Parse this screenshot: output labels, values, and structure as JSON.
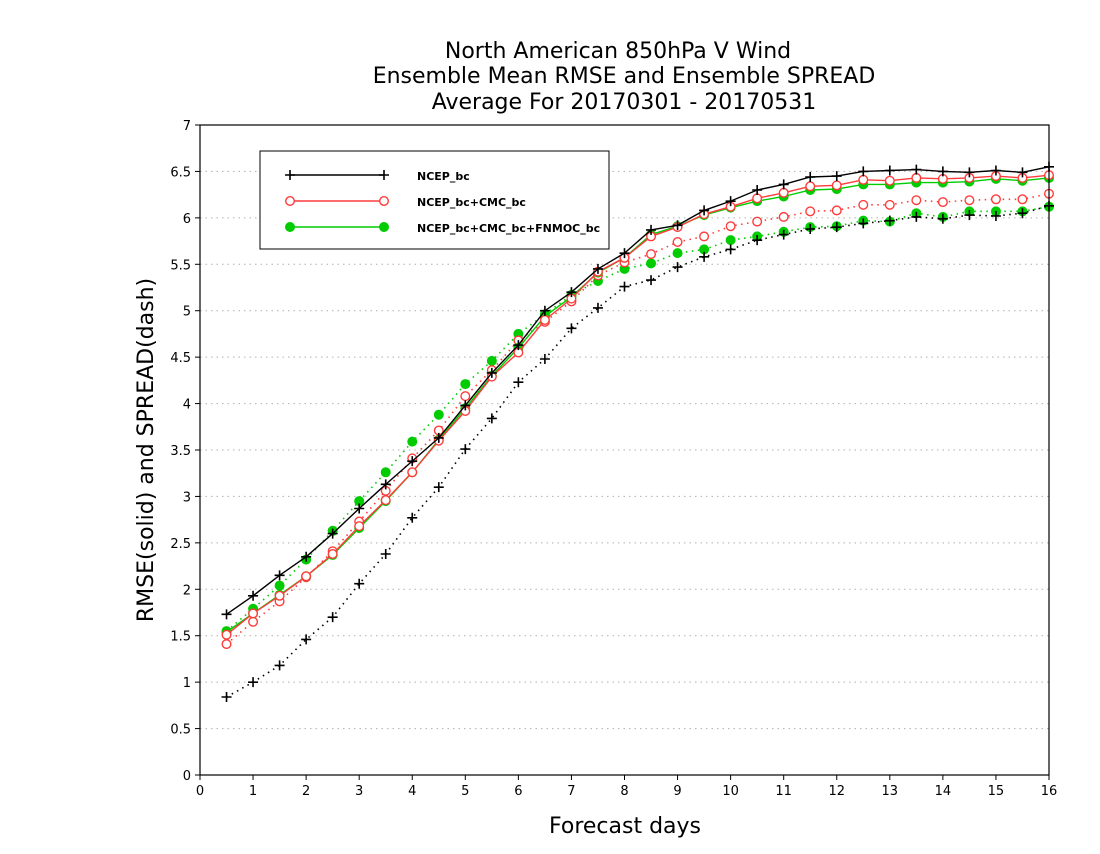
{
  "chart_data": {
    "type": "line",
    "title": [
      "North American 850hPa V Wind",
      "Ensemble Mean RMSE and Ensemble SPREAD",
      "Average For 20170301 - 20170531"
    ],
    "xlabel": "Forecast days",
    "ylabel": "RMSE(solid)  and  SPREAD(dash)",
    "xlim": [
      0,
      16
    ],
    "ylim": [
      0,
      7
    ],
    "xticks": [
      0,
      1,
      2,
      3,
      4,
      5,
      6,
      7,
      8,
      9,
      10,
      11,
      12,
      13,
      14,
      15,
      16
    ],
    "yticks": [
      0,
      0.5,
      1,
      1.5,
      2,
      2.5,
      3,
      3.5,
      4,
      4.5,
      5,
      5.5,
      6,
      6.5,
      7
    ],
    "ytick_labels": [
      "0",
      "0.5",
      "1",
      "1.5",
      "2",
      "2.5",
      "3",
      "3.5",
      "4",
      "4.5",
      "5",
      "5.5",
      "6",
      "6.5",
      "7"
    ],
    "grid": "horizontal dotted",
    "legend_position": "top-left",
    "x": [
      0.5,
      1,
      1.5,
      2,
      2.5,
      3,
      3.5,
      4,
      4.5,
      5,
      5.5,
      6,
      6.5,
      7,
      7.5,
      8,
      8.5,
      9,
      9.5,
      10,
      10.5,
      11,
      11.5,
      12,
      12.5,
      13,
      13.5,
      14,
      14.5,
      15,
      15.5,
      16
    ],
    "series": [
      {
        "name": "NCEP_bc",
        "color": "#000000",
        "marker": "plus",
        "rmse": [
          1.73,
          1.93,
          2.15,
          2.35,
          2.6,
          2.87,
          3.13,
          3.38,
          3.63,
          3.98,
          4.33,
          4.63,
          5.0,
          5.2,
          5.45,
          5.62,
          5.87,
          5.92,
          6.08,
          6.18,
          6.3,
          6.36,
          6.44,
          6.45,
          6.5,
          6.51,
          6.52,
          6.5,
          6.49,
          6.51,
          6.49,
          6.55
        ],
        "spread": [
          0.84,
          1.0,
          1.18,
          1.46,
          1.7,
          2.06,
          2.38,
          2.77,
          3.1,
          3.51,
          3.84,
          4.23,
          4.48,
          4.81,
          5.03,
          5.26,
          5.33,
          5.47,
          5.58,
          5.66,
          5.76,
          5.82,
          5.88,
          5.9,
          5.94,
          5.97,
          6.01,
          5.99,
          6.03,
          6.02,
          6.05,
          6.13
        ]
      },
      {
        "name": "NCEP_bc+CMC_bc",
        "color": "#ff3b3b",
        "marker": "open-circle",
        "rmse": [
          1.51,
          1.74,
          1.93,
          2.14,
          2.38,
          2.68,
          2.96,
          3.26,
          3.6,
          3.92,
          4.29,
          4.55,
          4.9,
          5.13,
          5.42,
          5.57,
          5.8,
          5.9,
          6.04,
          6.12,
          6.21,
          6.27,
          6.34,
          6.35,
          6.41,
          6.4,
          6.43,
          6.42,
          6.43,
          6.45,
          6.43,
          6.46
        ],
        "spread": [
          1.41,
          1.65,
          1.87,
          2.13,
          2.41,
          2.73,
          3.06,
          3.41,
          3.71,
          4.08,
          4.36,
          4.68,
          4.88,
          5.1,
          5.38,
          5.52,
          5.61,
          5.74,
          5.8,
          5.91,
          5.96,
          6.01,
          6.07,
          6.08,
          6.14,
          6.14,
          6.19,
          6.17,
          6.19,
          6.2,
          6.2,
          6.26
        ]
      },
      {
        "name": "NCEP_bc+CMC_bc+FNMOC_bc",
        "color": "#00cc00",
        "marker": "filled-circle",
        "rmse": [
          1.54,
          1.74,
          1.94,
          2.14,
          2.37,
          2.66,
          2.95,
          3.26,
          3.61,
          3.95,
          4.3,
          4.6,
          4.94,
          5.15,
          5.41,
          5.57,
          5.82,
          5.91,
          6.03,
          6.11,
          6.18,
          6.23,
          6.3,
          6.31,
          6.36,
          6.36,
          6.38,
          6.38,
          6.39,
          6.42,
          6.4,
          6.43
        ],
        "spread": [
          1.55,
          1.79,
          2.04,
          2.32,
          2.63,
          2.95,
          3.26,
          3.59,
          3.88,
          4.21,
          4.46,
          4.75,
          4.96,
          5.17,
          5.32,
          5.45,
          5.51,
          5.62,
          5.66,
          5.76,
          5.8,
          5.85,
          5.9,
          5.91,
          5.97,
          5.96,
          6.05,
          6.01,
          6.07,
          6.07,
          6.07,
          6.12
        ]
      }
    ]
  }
}
